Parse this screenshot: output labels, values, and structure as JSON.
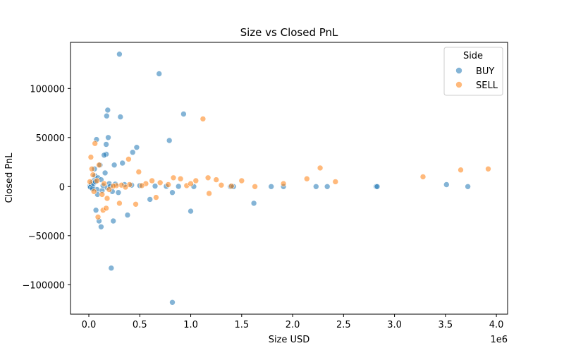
{
  "chart_data": {
    "type": "scatter",
    "title": "Size vs Closed PnL",
    "xlabel": "Size USD",
    "ylabel": "Closed PnL",
    "x_offset_text": "1e6",
    "xlim": [
      -180000,
      4110000
    ],
    "ylim": [
      -130000,
      147000
    ],
    "x_ticks": [
      0,
      500000,
      1000000,
      1500000,
      2000000,
      2500000,
      3000000,
      3500000,
      4000000
    ],
    "x_tick_labels": [
      "0.0",
      "0.5",
      "1.0",
      "1.5",
      "2.0",
      "2.5",
      "3.0",
      "3.5",
      "4.0"
    ],
    "y_ticks": [
      -100000,
      -50000,
      0,
      50000,
      100000
    ],
    "y_tick_labels": [
      "−100000",
      "−50000",
      "0",
      "50000",
      "100000"
    ],
    "grid": false,
    "legend": {
      "title": "Side",
      "placement": "top-right"
    },
    "series": [
      {
        "name": "BUY",
        "color": "#1f77b4",
        "points": [
          [
            300000,
            135000
          ],
          [
            690000,
            115000
          ],
          [
            930000,
            74000
          ],
          [
            185000,
            78000
          ],
          [
            175000,
            72000
          ],
          [
            310000,
            71000
          ],
          [
            790000,
            47000
          ],
          [
            190000,
            50000
          ],
          [
            75000,
            48000
          ],
          [
            170000,
            43000
          ],
          [
            470000,
            40000
          ],
          [
            430000,
            35000
          ],
          [
            170000,
            33000
          ],
          [
            150000,
            32000
          ],
          [
            330000,
            24000
          ],
          [
            250000,
            22000
          ],
          [
            110000,
            22000
          ],
          [
            55000,
            18000
          ],
          [
            160000,
            14000
          ],
          [
            60000,
            11000
          ],
          [
            90000,
            9000
          ],
          [
            120000,
            7000
          ],
          [
            50000,
            6000
          ],
          [
            30000,
            4000
          ],
          [
            200000,
            3000
          ],
          [
            260000,
            2500
          ],
          [
            350000,
            2000
          ],
          [
            420000,
            1500
          ],
          [
            500000,
            1000
          ],
          [
            650000,
            500
          ],
          [
            760000,
            300
          ],
          [
            880000,
            200
          ],
          [
            1030000,
            100
          ],
          [
            1390000,
            100
          ],
          [
            1420000,
            0
          ],
          [
            1790000,
            0
          ],
          [
            1910000,
            0
          ],
          [
            2230000,
            0
          ],
          [
            2340000,
            0
          ],
          [
            2820000,
            0
          ],
          [
            2830000,
            0
          ],
          [
            3510000,
            2000
          ],
          [
            3720000,
            0
          ],
          [
            20000,
            1000
          ],
          [
            40000,
            -1000
          ],
          [
            80000,
            -3000
          ],
          [
            130000,
            -4000
          ],
          [
            230000,
            -5000
          ],
          [
            290000,
            -6000
          ],
          [
            600000,
            -13000
          ],
          [
            820000,
            -6000
          ],
          [
            1000000,
            -25000
          ],
          [
            1620000,
            -17000
          ],
          [
            380000,
            -29000
          ],
          [
            70000,
            -24000
          ],
          [
            100000,
            -35000
          ],
          [
            240000,
            -35000
          ],
          [
            120000,
            -41000
          ],
          [
            220000,
            -83000
          ],
          [
            820000,
            -118000
          ],
          [
            10000,
            500
          ],
          [
            15000,
            -500
          ],
          [
            25000,
            2000
          ],
          [
            35000,
            -2000
          ],
          [
            45000,
            3000
          ],
          [
            65000,
            5000
          ],
          [
            85000,
            -8000
          ],
          [
            140000,
            1000
          ],
          [
            180000,
            -1000
          ],
          [
            210000,
            500
          ]
        ]
      },
      {
        "name": "SELL",
        "color": "#ff7f0e",
        "points": [
          [
            1120000,
            69000
          ],
          [
            60000,
            44000
          ],
          [
            20000,
            30000
          ],
          [
            390000,
            28000
          ],
          [
            100000,
            22000
          ],
          [
            30000,
            18000
          ],
          [
            490000,
            15000
          ],
          [
            2270000,
            19000
          ],
          [
            3920000,
            18000
          ],
          [
            3650000,
            17000
          ],
          [
            3280000,
            10000
          ],
          [
            2140000,
            8000
          ],
          [
            1170000,
            9000
          ],
          [
            1250000,
            7000
          ],
          [
            1500000,
            6000
          ],
          [
            2420000,
            5000
          ],
          [
            1910000,
            3000
          ],
          [
            1630000,
            0
          ],
          [
            830000,
            9000
          ],
          [
            900000,
            8000
          ],
          [
            1050000,
            6000
          ],
          [
            620000,
            6000
          ],
          [
            700000,
            4000
          ],
          [
            560000,
            3000
          ],
          [
            400000,
            2000
          ],
          [
            320000,
            1500
          ],
          [
            270000,
            1000
          ],
          [
            150000,
            3000
          ],
          [
            80000,
            6000
          ],
          [
            40000,
            12000
          ],
          [
            10000,
            5000
          ],
          [
            50000,
            -5000
          ],
          [
            130000,
            -8000
          ],
          [
            180000,
            -12000
          ],
          [
            300000,
            -17000
          ],
          [
            460000,
            -18000
          ],
          [
            660000,
            -11000
          ],
          [
            1180000,
            -7000
          ],
          [
            90000,
            -31000
          ],
          [
            140000,
            -24000
          ],
          [
            170000,
            -22000
          ],
          [
            200000,
            -3000
          ],
          [
            240000,
            500
          ],
          [
            360000,
            -500
          ],
          [
            520000,
            1000
          ],
          [
            780000,
            2000
          ],
          [
            960000,
            1000
          ],
          [
            1300000,
            1500
          ],
          [
            1400000,
            500
          ],
          [
            1000000,
            3000
          ]
        ]
      }
    ]
  }
}
